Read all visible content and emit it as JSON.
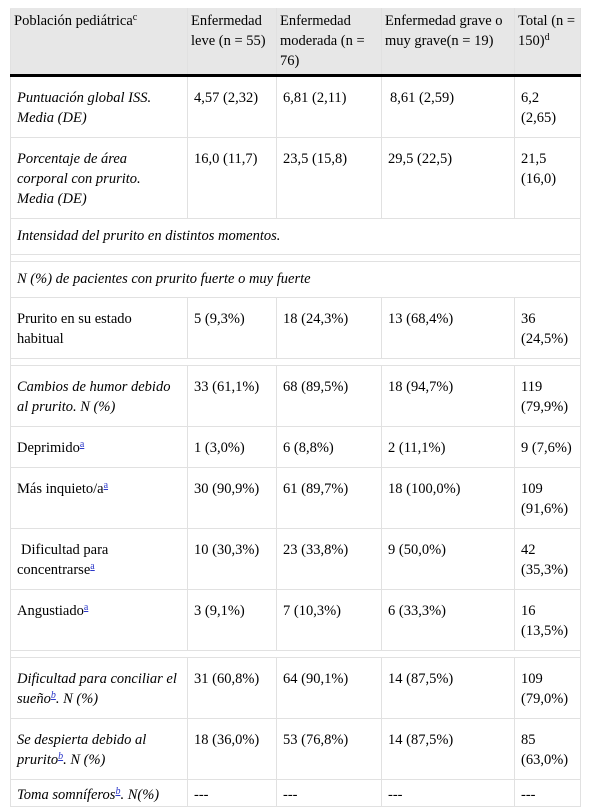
{
  "header": {
    "col1": "Población pediátrica",
    "col1_sup": "c",
    "col2": "Enfermedad leve (n = 55)",
    "col3": "Enfermedad moderada (n = 76)",
    "col4": "Enfermedad grave o muy grave(n = 19)",
    "col5": "Total (n = 150)",
    "col5_sup": "d"
  },
  "rows": {
    "r1": {
      "label": "Puntuación global ISS. Media (DE)",
      "c2": "4,57 (2,32)",
      "c3": "6,81 (2,11)",
      "c4": "8,61 (2,59)",
      "c5": "6,2 (2,65)"
    },
    "r2": {
      "label": "Porcentaje de área corporal con prurito. Media (DE)",
      "c2": "16,0 (11,7)",
      "c3": "23,5 (15,8)",
      "c4": "29,5 (22,5)",
      "c5": "21,5 (16,0)"
    },
    "r3": {
      "label": "Intensidad del prurito en distintos momentos."
    },
    "r4": {
      "label": "N (%) de pacientes con prurito fuerte o muy fuerte"
    },
    "r5": {
      "label": "Prurito en su estado habitual",
      "c2": "5 (9,3%)",
      "c3": "18 (24,3%)",
      "c4": "13 (68,4%)",
      "c5": "36 (24,5%)"
    },
    "r6": {
      "label": "Cambios de humor debido al prurito. N (%)",
      "c2": "33 (61,1%)",
      "c3": "68 (89,5%)",
      "c4": "18 (94,7%)",
      "c5": "119 (79,9%)"
    },
    "r7": {
      "label": "Deprimido",
      "sup": "a",
      "c2": "1 (3,0%)",
      "c3": "6 (8,8%)",
      "c4": "2 (11,1%)",
      "c5": "9 (7,6%)"
    },
    "r8": {
      "label": "Más inquieto/a",
      "sup": "a",
      "c2": "30 (90,9%)",
      "c3": "61 (89,7%)",
      "c4": "18 (100,0%)",
      "c5": "109 (91,6%)"
    },
    "r9": {
      "label": "Dificultad para concentrarse",
      "sup": "a",
      "c2": "10 (30,3%)",
      "c3": "23 (33,8%)",
      "c4": "9 (50,0%)",
      "c5": "42 (35,3%)"
    },
    "r10": {
      "label": "Angustiado",
      "sup": "a",
      "c2": "3 (9,1%)",
      "c3": "7 (10,3%)",
      "c4": "6 (33,3%)",
      "c5": "16 (13,5%)"
    },
    "r11": {
      "label": "Dificultad para conciliar el sueño",
      "sup": "b",
      "suffix": ". N (%)",
      "c2": "31 (60,8%)",
      "c3": "64 (90,1%)",
      "c4": "14 (87,5%)",
      "c5": "109 (79,0%)"
    },
    "r12": {
      "label": "Se despierta debido al prurito",
      "sup": "b",
      "suffix": ". N (%)",
      "c2": "18 (36,0%)",
      "c3": "53 (76,8%)",
      "c4": "14 (87,5%)",
      "c5": "85 (63,0%)"
    },
    "r13": {
      "label": "Toma somníferos",
      "sup": "b",
      "suffix": ". N(%)",
      "c2": "---",
      "c3": "---",
      "c4": "---",
      "c5": "---"
    }
  }
}
